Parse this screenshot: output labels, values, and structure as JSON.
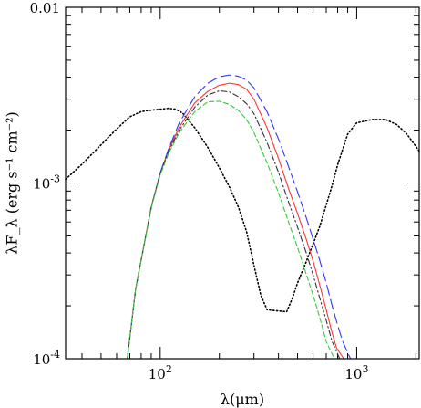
{
  "chart_data": {
    "type": "line",
    "xlabel": "λ(μm)",
    "ylabel": "λF_λ (erg s⁻¹ cm⁻²)",
    "x_scale": "log",
    "y_scale": "log",
    "xlim": [
      33,
      2080
    ],
    "ylim": [
      0.0001,
      0.01
    ],
    "x_tick_labels": [
      {
        "value": 100,
        "label": "10²"
      },
      {
        "value": 1000,
        "label": "10³"
      }
    ],
    "y_tick_labels": [
      {
        "value": 0.01,
        "label": "0.01"
      },
      {
        "value": 0.001,
        "label": "10⁻³"
      },
      {
        "value": 0.0001,
        "label": "10⁻⁴"
      }
    ],
    "grid": false,
    "series": [
      {
        "style": "dotted",
        "color": "#000000",
        "points": [
          [
            33,
            0.00105
          ],
          [
            40,
            0.00128
          ],
          [
            50,
            0.00165
          ],
          [
            60,
            0.00203
          ],
          [
            70,
            0.00238
          ],
          [
            80,
            0.00255
          ],
          [
            90,
            0.0026
          ],
          [
            100,
            0.00263
          ],
          [
            110,
            0.00266
          ],
          [
            120,
            0.00263
          ],
          [
            130,
            0.0025
          ],
          [
            150,
            0.00206
          ],
          [
            175,
            0.00159
          ],
          [
            200,
            0.00122
          ],
          [
            225,
            0.00095
          ],
          [
            250,
            0.00073
          ],
          [
            275,
            0.00053
          ],
          [
            300,
            0.00034
          ],
          [
            325,
            0.00023
          ],
          [
            350,
            0.00019
          ],
          [
            400,
            0.000187
          ],
          [
            440,
            0.000185
          ],
          [
            470,
            0.00022
          ],
          [
            500,
            0.00027
          ],
          [
            550,
            0.00035
          ],
          [
            600,
            0.00045
          ],
          [
            650,
            0.00057
          ],
          [
            700,
            0.00075
          ],
          [
            750,
            0.00097
          ],
          [
            800,
            0.00127
          ],
          [
            900,
            0.0019
          ],
          [
            1000,
            0.0022
          ],
          [
            1200,
            0.0023
          ],
          [
            1400,
            0.0023
          ],
          [
            1600,
            0.00215
          ],
          [
            1800,
            0.0019
          ],
          [
            2080,
            0.00152
          ]
        ]
      },
      {
        "style": "solid",
        "color": "#ff3333",
        "points": [
          [
            68,
            0.0001
          ],
          [
            75,
            0.00025
          ],
          [
            90,
            0.00073
          ],
          [
            100,
            0.00114
          ],
          [
            110,
            0.00153
          ],
          [
            125,
            0.00208
          ],
          [
            150,
            0.00286
          ],
          [
            175,
            0.00333
          ],
          [
            200,
            0.0036
          ],
          [
            225,
            0.0037
          ],
          [
            250,
            0.00363
          ],
          [
            275,
            0.00342
          ],
          [
            300,
            0.003
          ],
          [
            350,
            0.00206
          ],
          [
            400,
            0.00138
          ],
          [
            450,
            0.00093
          ],
          [
            500,
            0.00067
          ],
          [
            550,
            0.00049
          ],
          [
            600,
            0.00036
          ],
          [
            650,
            0.00026
          ],
          [
            700,
            0.00019
          ],
          [
            750,
            0.00014
          ],
          [
            790,
            0.000115
          ],
          [
            860,
            0.0001
          ]
        ]
      },
      {
        "style": "long-dash",
        "color": "#3333ff",
        "points": [
          [
            68,
            0.0001
          ],
          [
            75,
            0.00025
          ],
          [
            90,
            0.00072
          ],
          [
            100,
            0.00114
          ],
          [
            110,
            0.00155
          ],
          [
            125,
            0.0022
          ],
          [
            150,
            0.0031
          ],
          [
            175,
            0.0037
          ],
          [
            200,
            0.00402
          ],
          [
            225,
            0.00412
          ],
          [
            250,
            0.00405
          ],
          [
            275,
            0.00385
          ],
          [
            300,
            0.00348
          ],
          [
            350,
            0.00254
          ],
          [
            400,
            0.00178
          ],
          [
            450,
            0.00124
          ],
          [
            500,
            0.00089
          ],
          [
            550,
            0.00065
          ],
          [
            600,
            0.00048
          ],
          [
            650,
            0.00036
          ],
          [
            700,
            0.00027
          ],
          [
            750,
            0.0002
          ],
          [
            800,
            0.000155
          ],
          [
            850,
            0.000125
          ],
          [
            930,
            0.0001
          ]
        ]
      },
      {
        "style": "dash-dot",
        "color": "#333333",
        "points": [
          [
            68,
            0.0001
          ],
          [
            75,
            0.00025
          ],
          [
            90,
            0.00073
          ],
          [
            100,
            0.00113
          ],
          [
            110,
            0.0015
          ],
          [
            125,
            0.002
          ],
          [
            150,
            0.0027
          ],
          [
            175,
            0.00317
          ],
          [
            200,
            0.00335
          ],
          [
            225,
            0.0033
          ],
          [
            250,
            0.0031
          ],
          [
            275,
            0.00283
          ],
          [
            300,
            0.00248
          ],
          [
            350,
            0.0017
          ],
          [
            400,
            0.00115
          ],
          [
            450,
            0.00078
          ],
          [
            500,
            0.00056
          ],
          [
            550,
            0.00041
          ],
          [
            600,
            0.0003
          ],
          [
            650,
            0.00022
          ],
          [
            700,
            0.000165
          ],
          [
            750,
            0.000125
          ],
          [
            820,
            0.0001
          ]
        ]
      },
      {
        "style": "dashed",
        "color": "#33cc33",
        "points": [
          [
            68,
            0.0001
          ],
          [
            75,
            0.00025
          ],
          [
            90,
            0.00072
          ],
          [
            100,
            0.00111
          ],
          [
            110,
            0.00146
          ],
          [
            125,
            0.00194
          ],
          [
            150,
            0.00255
          ],
          [
            175,
            0.0029
          ],
          [
            200,
            0.00292
          ],
          [
            225,
            0.0028
          ],
          [
            250,
            0.00259
          ],
          [
            275,
            0.0023
          ],
          [
            300,
            0.00194
          ],
          [
            350,
            0.0013
          ],
          [
            400,
            0.00088
          ],
          [
            450,
            0.0006
          ],
          [
            500,
            0.00043
          ],
          [
            550,
            0.00031
          ],
          [
            600,
            0.00023
          ],
          [
            650,
            0.00017
          ],
          [
            700,
            0.000125
          ],
          [
            770,
            0.0001
          ]
        ]
      }
    ]
  }
}
